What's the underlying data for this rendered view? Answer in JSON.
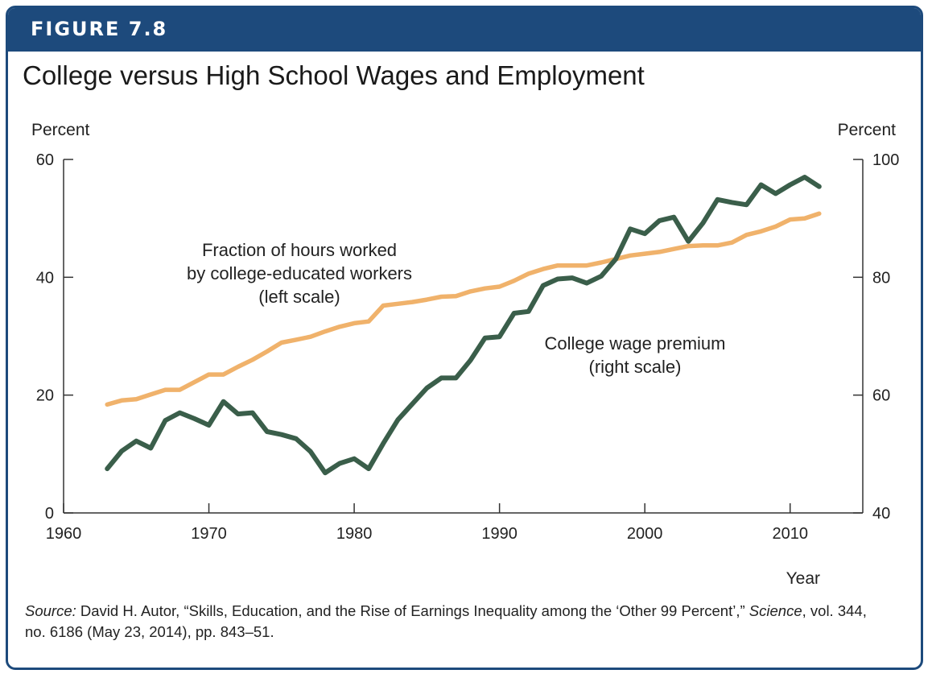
{
  "figure_label": "FIGURE 7.8",
  "title": "College versus High School Wages and Employment",
  "source": {
    "lead": "Source:",
    "text_before_journal": " David H. Autor, “Skills, Education, and the Rise of Earnings Inequality among the ‘Other 99 Percent’,” ",
    "journal": "Science",
    "text_after_journal": ", vol. 344, no. 6186 (May 23, 2014), pp. 843–51."
  },
  "colors": {
    "frame": "#1d4a7c",
    "hours_series": "#f0b26b",
    "premium_series": "#3a5e4a",
    "axis": "#333333"
  },
  "chart_data": {
    "type": "line",
    "xlabel": "Year",
    "ylabel_left": "Percent",
    "ylabel_right": "Percent",
    "xlim": [
      1960,
      2015
    ],
    "ylim_left": [
      0,
      60
    ],
    "ylim_right": [
      40,
      100
    ],
    "x_ticks": [
      1960,
      1970,
      1980,
      1990,
      2000,
      2010
    ],
    "y_ticks_left": [
      0,
      20,
      40,
      60
    ],
    "y_ticks_right": [
      40,
      60,
      80,
      100
    ],
    "grid": false,
    "series": [
      {
        "key": "hours",
        "axis": "left",
        "color": "#f0b26b",
        "annotation": [
          "Fraction of hours worked",
          "by college-educated workers",
          "(left scale)"
        ],
        "x": [
          1963,
          1964,
          1965,
          1966,
          1967,
          1968,
          1969,
          1970,
          1971,
          1972,
          1973,
          1974,
          1975,
          1976,
          1977,
          1978,
          1979,
          1980,
          1981,
          1982,
          1983,
          1984,
          1985,
          1986,
          1987,
          1988,
          1989,
          1990,
          1991,
          1992,
          1993,
          1994,
          1995,
          1996,
          1997,
          1998,
          1999,
          2000,
          2001,
          2002,
          2003,
          2004,
          2005,
          2006,
          2007,
          2008,
          2009,
          2010,
          2011,
          2012
        ],
        "y": [
          18.4,
          19.1,
          19.3,
          20.1,
          20.9,
          20.9,
          22.2,
          23.5,
          23.5,
          24.8,
          26.0,
          27.4,
          28.9,
          29.4,
          29.9,
          30.8,
          31.6,
          32.2,
          32.5,
          35.2,
          35.5,
          35.8,
          36.2,
          36.7,
          36.8,
          37.6,
          38.1,
          38.4,
          39.4,
          40.6,
          41.4,
          42.0,
          42.0,
          42.0,
          42.5,
          43.1,
          43.7,
          44.0,
          44.3,
          44.8,
          45.3,
          45.4,
          45.4,
          45.9,
          47.2,
          47.8,
          48.6,
          49.8,
          50.0,
          50.8
        ]
      },
      {
        "key": "premium",
        "axis": "right",
        "color": "#3a5e4a",
        "annotation": [
          "College wage premium",
          "(right scale)"
        ],
        "x": [
          1963,
          1964,
          1965,
          1966,
          1967,
          1968,
          1969,
          1970,
          1971,
          1972,
          1973,
          1974,
          1975,
          1976,
          1977,
          1978,
          1979,
          1980,
          1981,
          1982,
          1983,
          1984,
          1985,
          1986,
          1987,
          1988,
          1989,
          1990,
          1991,
          1992,
          1993,
          1994,
          1995,
          1996,
          1997,
          1998,
          1999,
          2000,
          2001,
          2002,
          2003,
          2004,
          2005,
          2006,
          2007,
          2008,
          2009,
          2010,
          2011,
          2012
        ],
        "y": [
          47.5,
          50.5,
          52.2,
          51.0,
          55.7,
          57.0,
          56.0,
          54.9,
          58.9,
          56.8,
          57.0,
          53.8,
          53.3,
          52.6,
          50.4,
          46.8,
          48.4,
          49.2,
          47.5,
          51.8,
          55.8,
          58.5,
          61.2,
          62.9,
          62.9,
          65.9,
          69.7,
          69.9,
          73.9,
          74.2,
          78.6,
          79.7,
          79.9,
          79.0,
          80.2,
          83.1,
          88.2,
          87.4,
          89.6,
          90.2,
          86.1,
          89.2,
          93.2,
          92.7,
          92.3,
          95.7,
          94.2,
          95.7,
          97.0,
          95.4
        ]
      }
    ]
  }
}
